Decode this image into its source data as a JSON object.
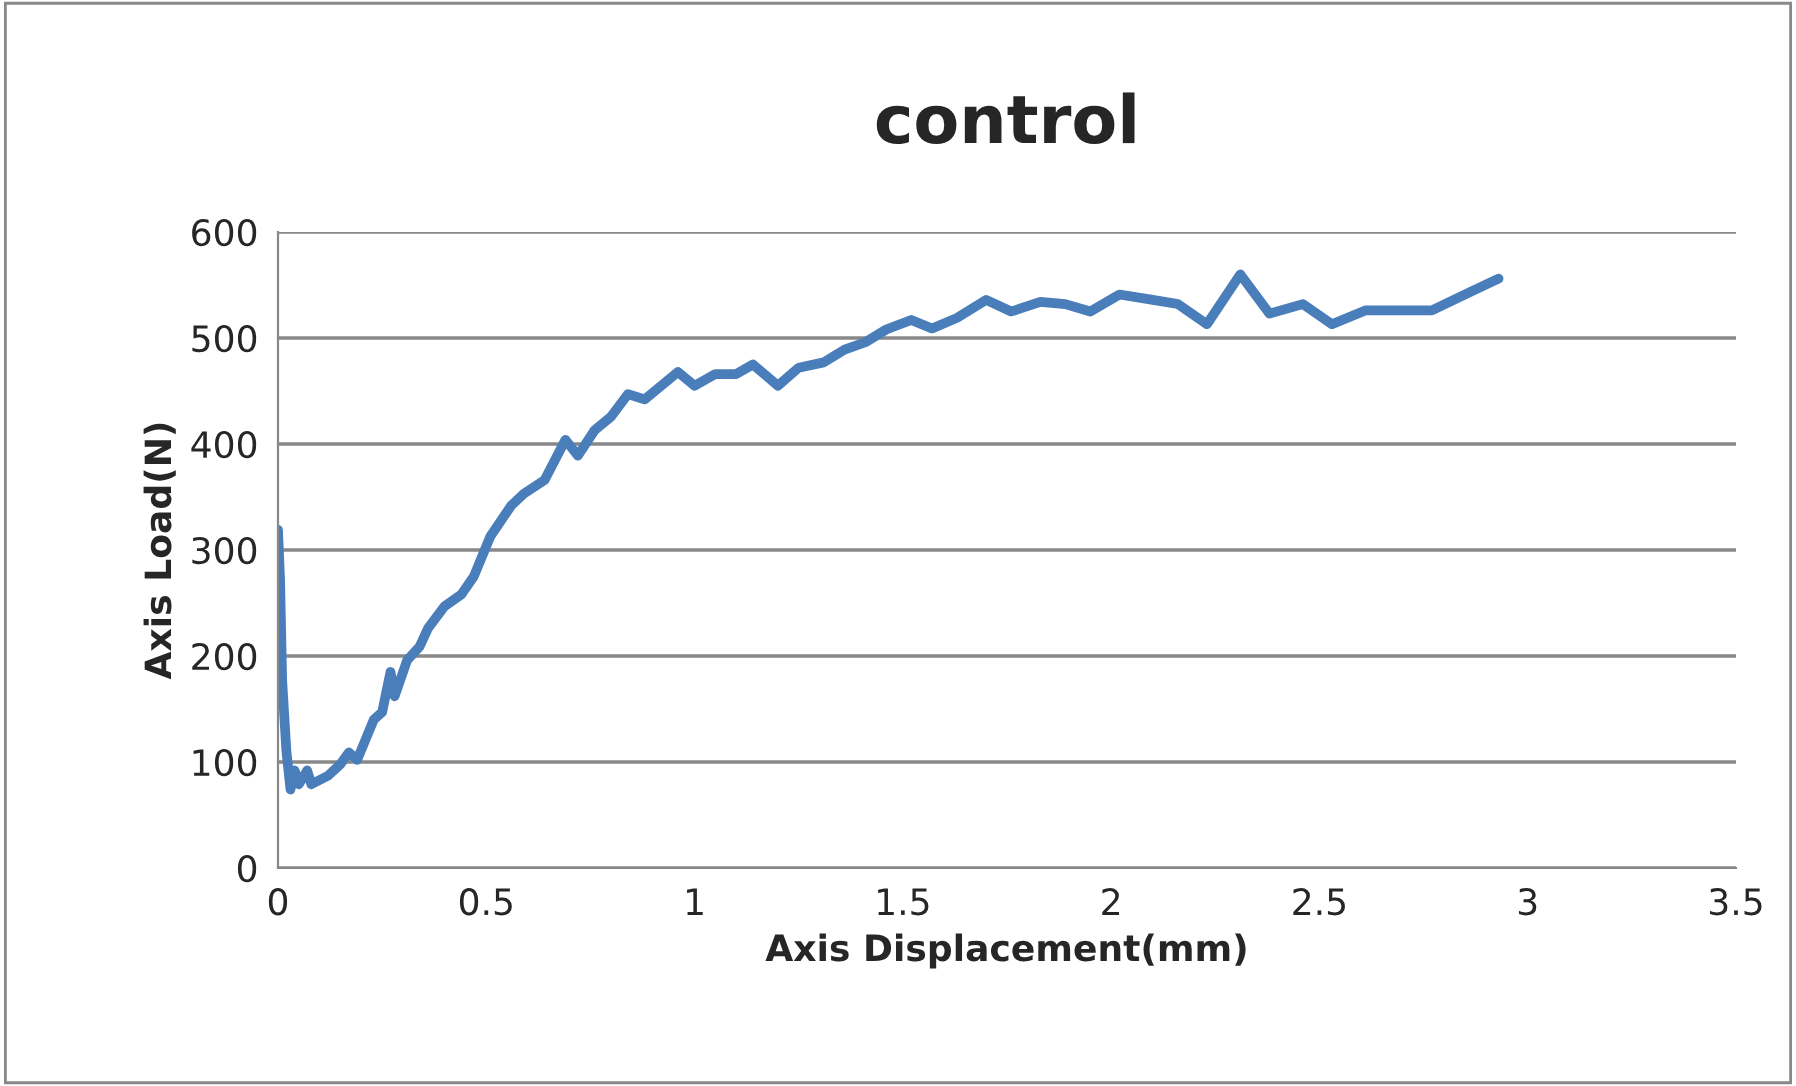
{
  "chart_data": {
    "type": "line",
    "title": "control",
    "xlabel": "Axis Displacement(mm)",
    "ylabel": "Axis Load(N)",
    "xlim": [
      0,
      3.5
    ],
    "xticks": [
      0,
      0.5,
      1,
      1.5,
      2,
      2.5,
      3,
      3.5
    ],
    "ylim": [
      0,
      600
    ],
    "yticks": [
      0,
      100,
      200,
      300,
      400,
      500,
      600
    ],
    "grid": "y",
    "legend": false,
    "marker": "none",
    "line_style": "solid",
    "x": [
      0,
      0.005,
      0.01,
      0.02,
      0.03,
      0.04,
      0.05,
      0.07,
      0.08,
      0.1,
      0.12,
      0.15,
      0.17,
      0.19,
      0.21,
      0.23,
      0.25,
      0.27,
      0.28,
      0.31,
      0.34,
      0.36,
      0.4,
      0.44,
      0.47,
      0.51,
      0.56,
      0.59,
      0.64,
      0.69,
      0.72,
      0.76,
      0.8,
      0.84,
      0.88,
      0.96,
      1.0,
      1.05,
      1.1,
      1.14,
      1.2,
      1.25,
      1.31,
      1.36,
      1.41,
      1.46,
      1.52,
      1.57,
      1.63,
      1.7,
      1.76,
      1.83,
      1.89,
      1.95,
      2.02,
      2.1,
      2.16,
      2.23,
      2.31,
      2.38,
      2.46,
      2.53,
      2.61,
      2.77,
      2.86,
      2.93
    ],
    "series": [
      {
        "color": "#4a7ebb",
        "values": [
          319,
          272,
          177,
          111,
          74,
          92,
          79,
          92,
          79,
          83,
          87,
          98,
          109,
          102,
          121,
          140,
          147,
          185,
          162,
          196,
          209,
          226,
          247,
          258,
          275,
          313,
          342,
          353,
          366,
          404,
          389,
          413,
          426,
          447,
          442,
          468,
          455,
          466,
          466,
          475,
          455,
          472,
          477,
          489,
          496,
          508,
          517,
          509,
          519,
          536,
          525,
          534,
          532,
          525,
          541,
          536,
          532,
          513,
          560,
          523,
          532,
          513,
          526,
          526,
          543,
          556
        ]
      }
    ]
  }
}
